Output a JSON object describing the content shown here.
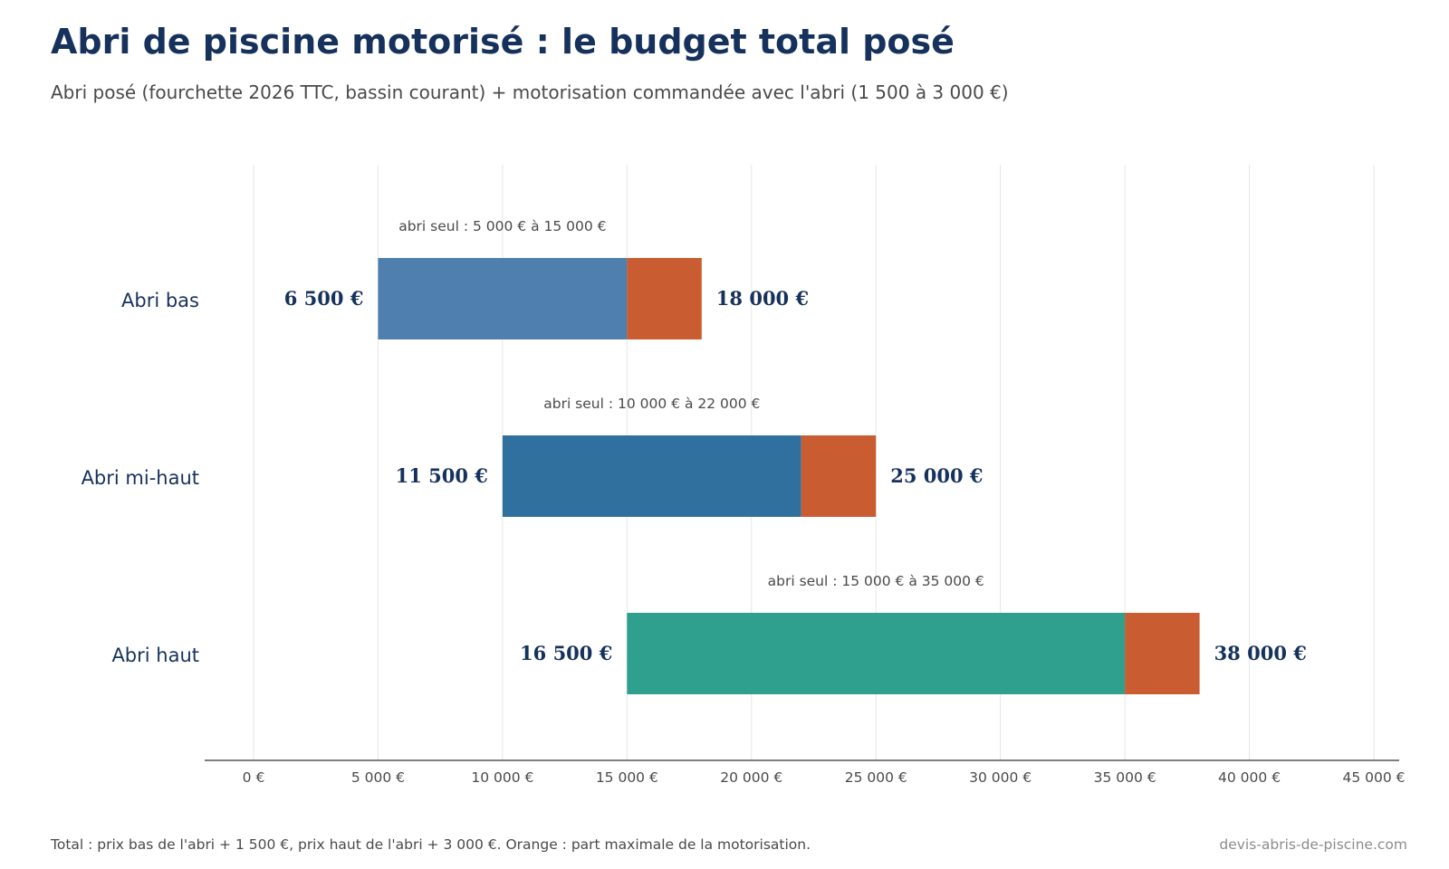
{
  "header": {
    "title": "Abri de piscine motorisé : le budget total posé",
    "subtitle": "Abri posé (fourchette 2026 TTC, bassin courant) + motorisation commandée avec l'abri (1 500 à 3 000 €)"
  },
  "footer": {
    "note": "Total : prix bas de l'abri + 1 500 €, prix haut de l'abri + 3 000 €. Orange : part maximale de la motorisation.",
    "source": "devis-abris-de-piscine.com"
  },
  "chart_data": {
    "type": "bar",
    "orientation": "horizontal-range",
    "title": "Abri de piscine motorisé : le budget total posé",
    "xlabel": "",
    "ylabel": "",
    "xlim": [
      0,
      45000
    ],
    "x_ticks": [
      0,
      5000,
      10000,
      15000,
      20000,
      25000,
      30000,
      35000,
      40000,
      45000
    ],
    "x_tick_labels": [
      "0 €",
      "5 000 €",
      "10 000 €",
      "15 000 €",
      "20 000 €",
      "25 000 €",
      "30 000 €",
      "35 000 €",
      "40 000 €",
      "45 000 €"
    ],
    "grid": "vertical",
    "categories": [
      "Abri bas",
      "Abri mi-haut",
      "Abri haut"
    ],
    "abri_low": [
      5000,
      10000,
      15000
    ],
    "abri_high": [
      15000,
      22000,
      35000
    ],
    "total_low": [
      6500,
      11500,
      16500
    ],
    "total_high": [
      18000,
      25000,
      38000
    ],
    "total_low_labels": [
      "6 500 €",
      "11 500 €",
      "16 500 €"
    ],
    "total_high_labels": [
      "18 000 €",
      "25 000 €",
      "38 000 €"
    ],
    "abri_seul_labels": [
      "abri seul : 5 000 € à 15 000 €",
      "abri seul : 10 000 € à 22 000 €",
      "abri seul : 15 000 € à 35 000 €"
    ],
    "bar_colors": [
      "#4f7faf",
      "#30709e",
      "#2fa08e"
    ],
    "motorisation_color": "#c95c30",
    "value_label_color": "#16325c"
  }
}
